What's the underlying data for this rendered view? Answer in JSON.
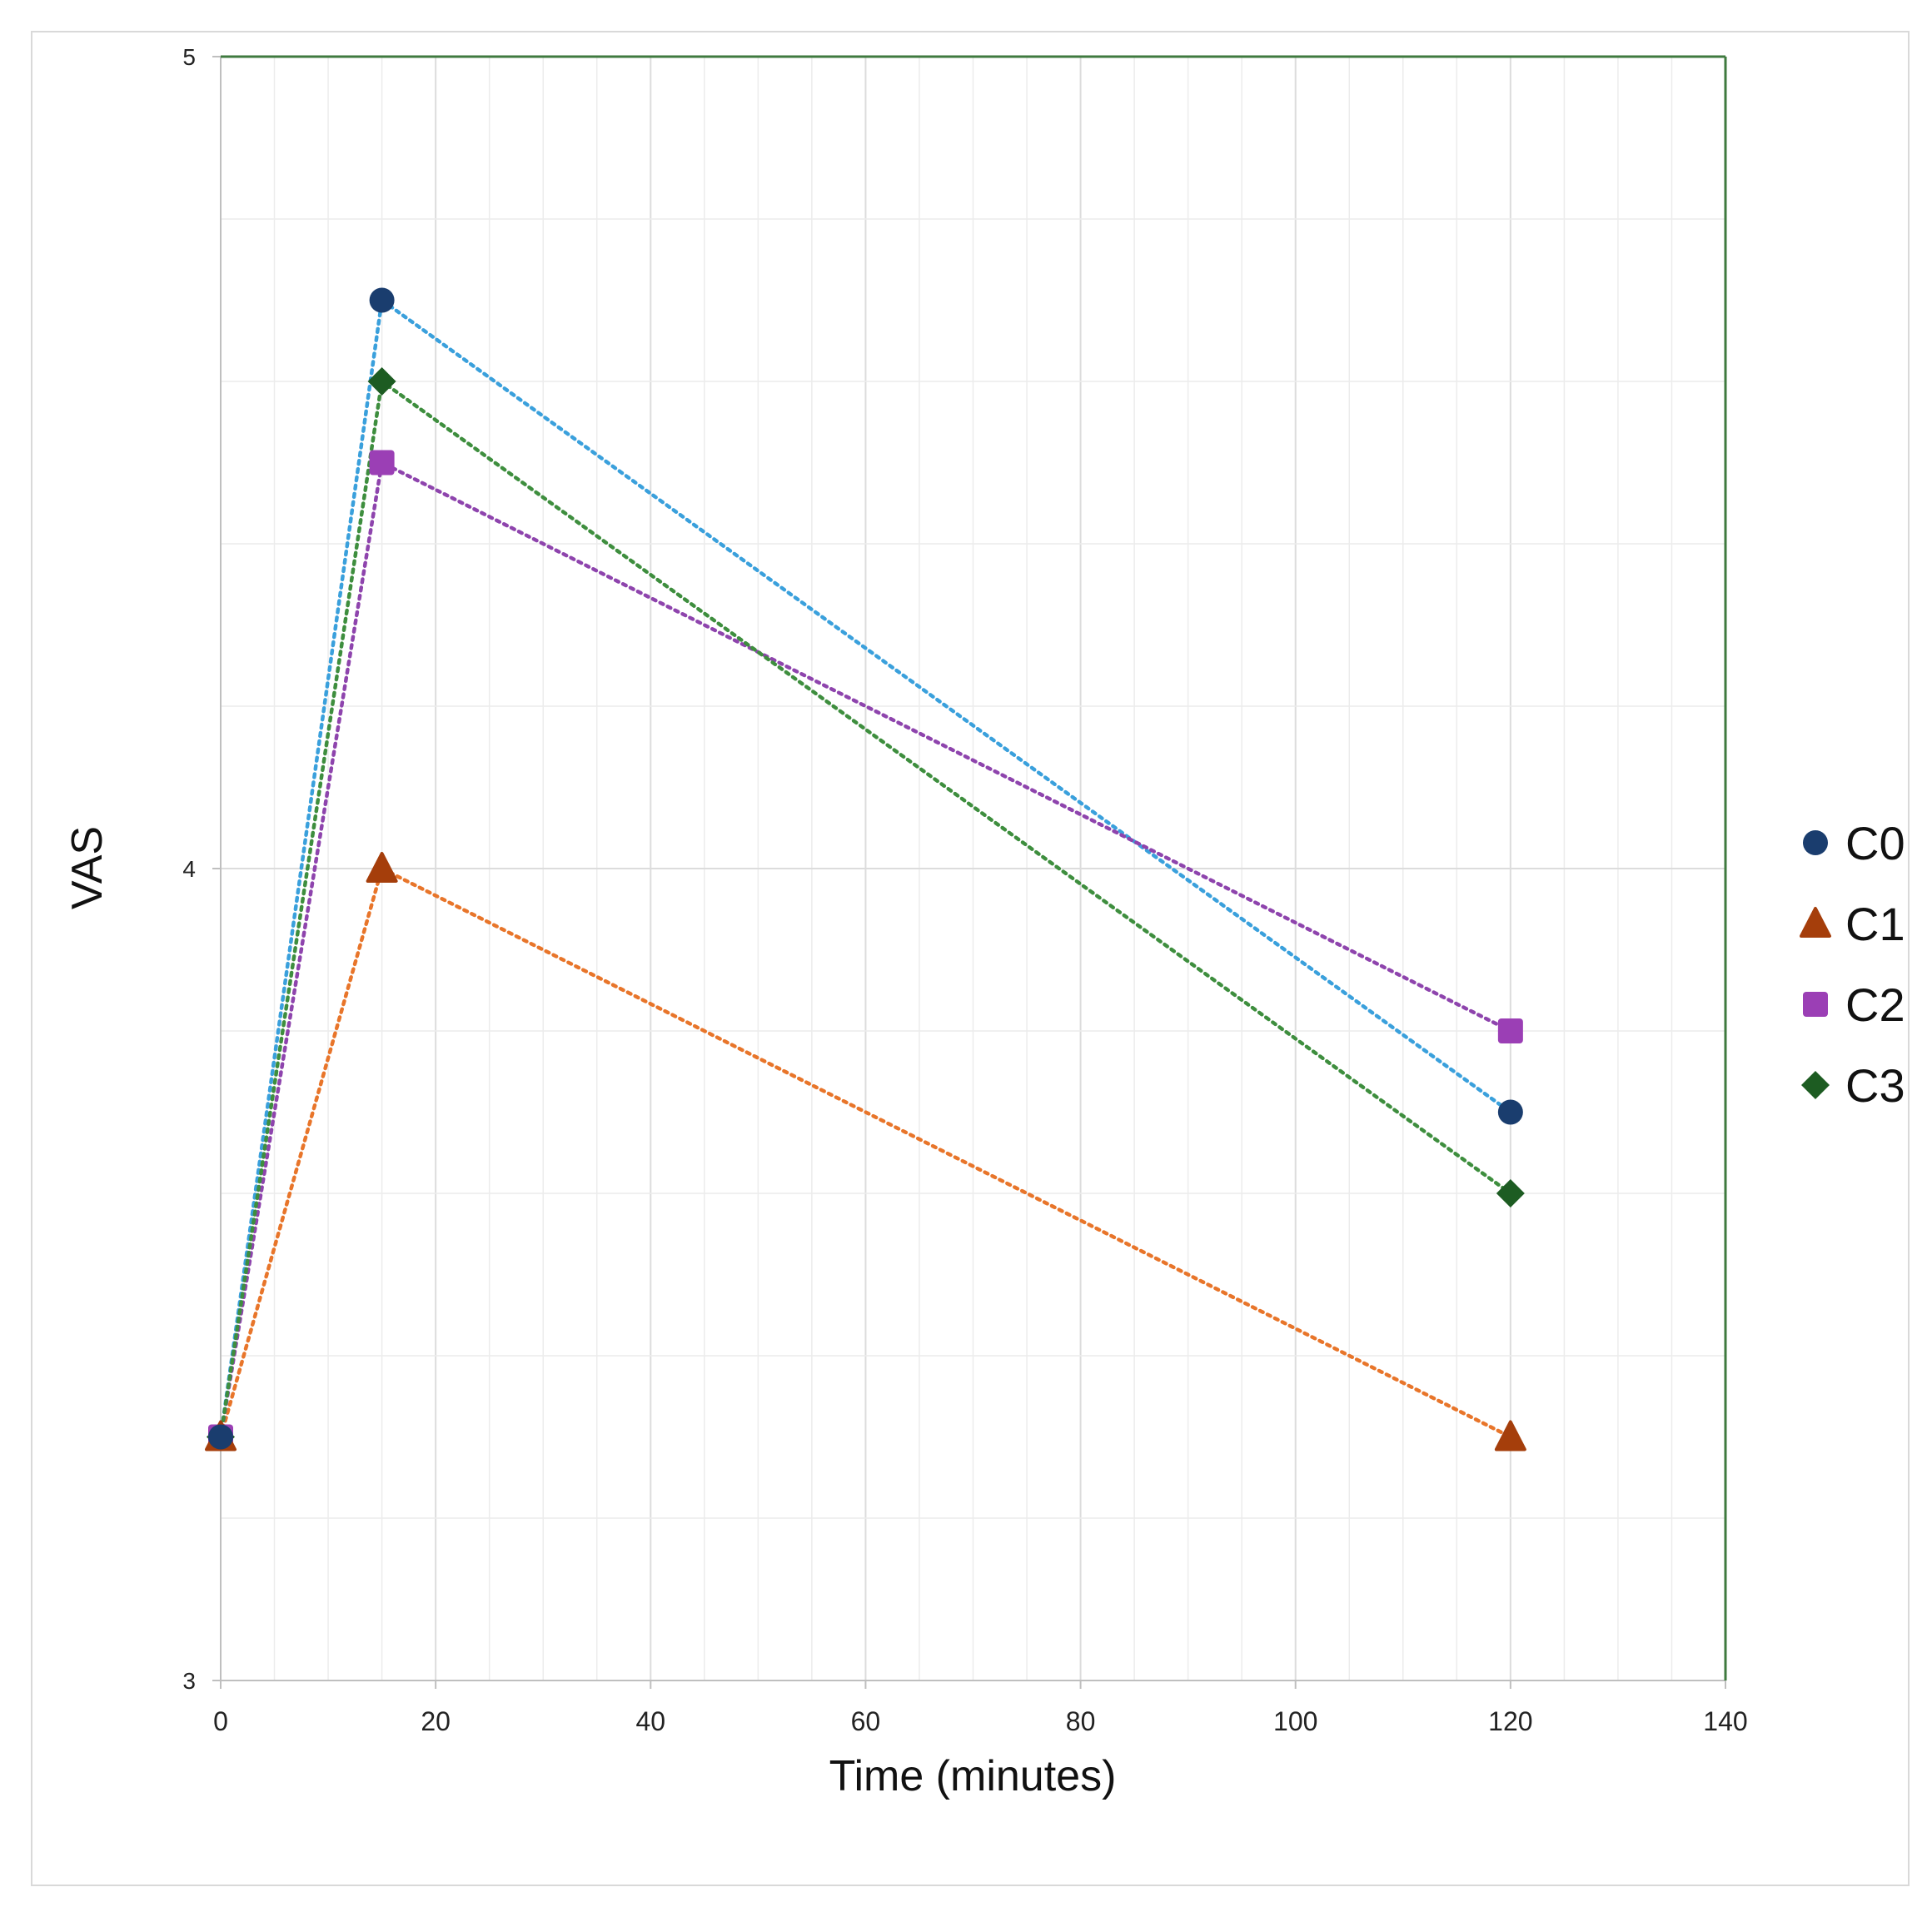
{
  "chart_data": {
    "type": "line",
    "title": "",
    "xlabel": "Time (minutes)",
    "ylabel": "VAS",
    "xlim": [
      0,
      140
    ],
    "ylim": [
      3,
      5
    ],
    "xticks": [
      "0",
      "20",
      "40",
      "60",
      "80",
      "100",
      "120",
      "140"
    ],
    "yticks": [
      "3",
      "4",
      "5"
    ],
    "grid": true,
    "legend": "right",
    "series": [
      {
        "name": "C0",
        "marker": "circle",
        "marker_color": "#1a3d6e",
        "line_color": "#3aa0dc",
        "x": [
          0,
          15,
          120
        ],
        "y": [
          3.3,
          4.7,
          3.7
        ]
      },
      {
        "name": "C1",
        "marker": "triangle",
        "marker_color": "#a53e0b",
        "line_color": "#e8752a",
        "x": [
          0,
          15,
          120
        ],
        "y": [
          3.3,
          4.0,
          3.3
        ]
      },
      {
        "name": "C2",
        "marker": "square",
        "marker_color": "#9b3fb5",
        "line_color": "#8e44ad",
        "x": [
          0,
          15,
          120
        ],
        "y": [
          3.3,
          4.5,
          3.8
        ]
      },
      {
        "name": "C3",
        "marker": "diamond",
        "marker_color": "#1d5c22",
        "line_color": "#3e8e3e",
        "x": [
          0,
          15,
          120
        ],
        "y": [
          3.3,
          4.6,
          3.6
        ]
      }
    ]
  }
}
